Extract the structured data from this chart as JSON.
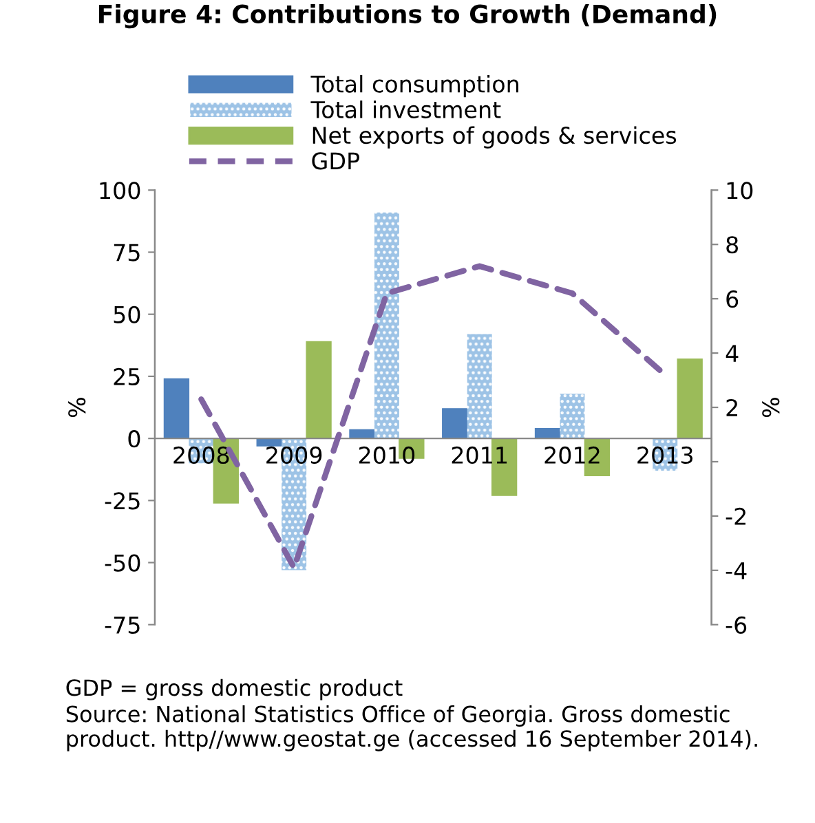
{
  "chart_data": {
    "type": "bar",
    "title": "Figure 4: Contributions to Growth (Demand)",
    "categories": [
      "2008",
      "2009",
      "2010",
      "2011",
      "2012",
      "2013"
    ],
    "series": [
      {
        "name": "Total consumption",
        "color": "#4f81bd",
        "values": [
          24,
          -3,
          3.5,
          12,
          4,
          0
        ]
      },
      {
        "name": "Total investment",
        "color": "#9dc3e6",
        "values": [
          -10,
          -53,
          91,
          42,
          18,
          -13
        ]
      },
      {
        "name": "Net exports of goods & services",
        "color": "#9bbb59",
        "values": [
          -26,
          39,
          -8,
          -23,
          -15,
          32
        ]
      },
      {
        "name": "GDP",
        "type": "line",
        "axis": "y2",
        "color": "#8064a2",
        "line_style": "dashed",
        "values": [
          2.3,
          -3.9,
          6.2,
          7.2,
          6.2,
          3.2
        ]
      }
    ],
    "ylabel": "%",
    "y2label": "%",
    "ylim": [
      -75,
      100
    ],
    "yticks": [
      -75,
      -50,
      -25,
      0,
      25,
      50,
      75,
      100
    ],
    "y2lim": [
      -6,
      10
    ],
    "y2ticks": [
      -6,
      -4,
      -2,
      {
        "value": 0,
        "label": null
      },
      2,
      4,
      6,
      8,
      10
    ],
    "legend": "top",
    "grid": false,
    "annotations": [
      "GDP = gross domestic product",
      "Source: National Statistics Office of Georgia. Gross domestic product. http//www.geostat.ge (accessed 16 September 2014)."
    ]
  }
}
